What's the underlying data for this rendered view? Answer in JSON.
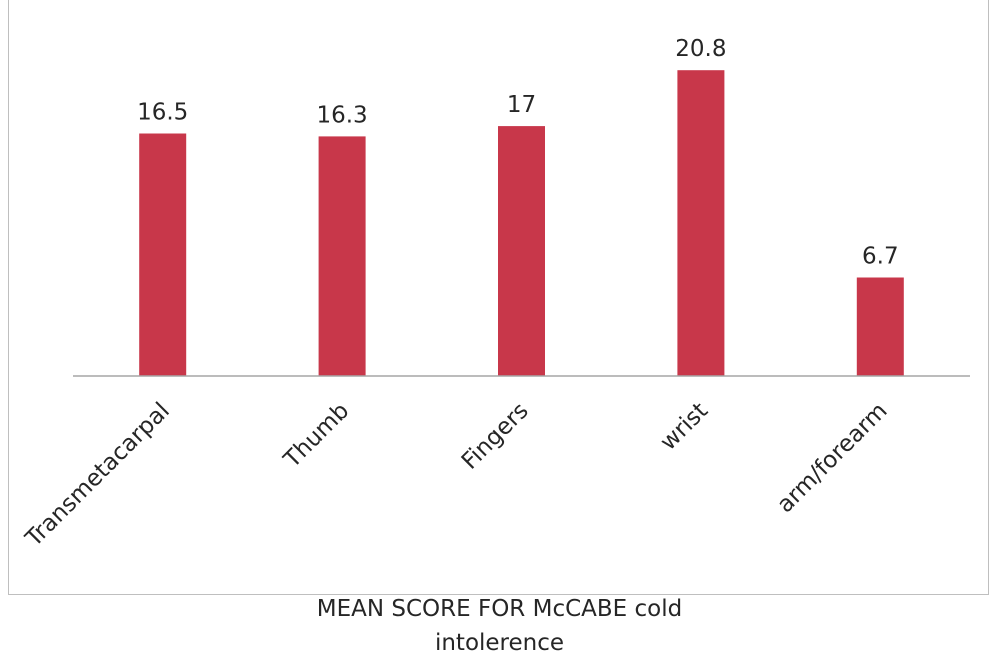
{
  "chart_data": {
    "type": "bar",
    "categories": [
      "Transmetacarpal",
      "Thumb",
      "Fingers",
      "wrist",
      "arm/forearm"
    ],
    "values": [
      16.5,
      16.3,
      17,
      20.8,
      6.7
    ],
    "value_labels": [
      "16.5",
      "16.3",
      "17",
      "20.8",
      "6.7"
    ],
    "xlabel_line1": "MEAN SCORE FOR McCABE cold",
    "xlabel_line2": "intolerence",
    "ylim": [
      0,
      25
    ],
    "grid": false,
    "legend": "none",
    "bar_color": "#c8374a"
  }
}
